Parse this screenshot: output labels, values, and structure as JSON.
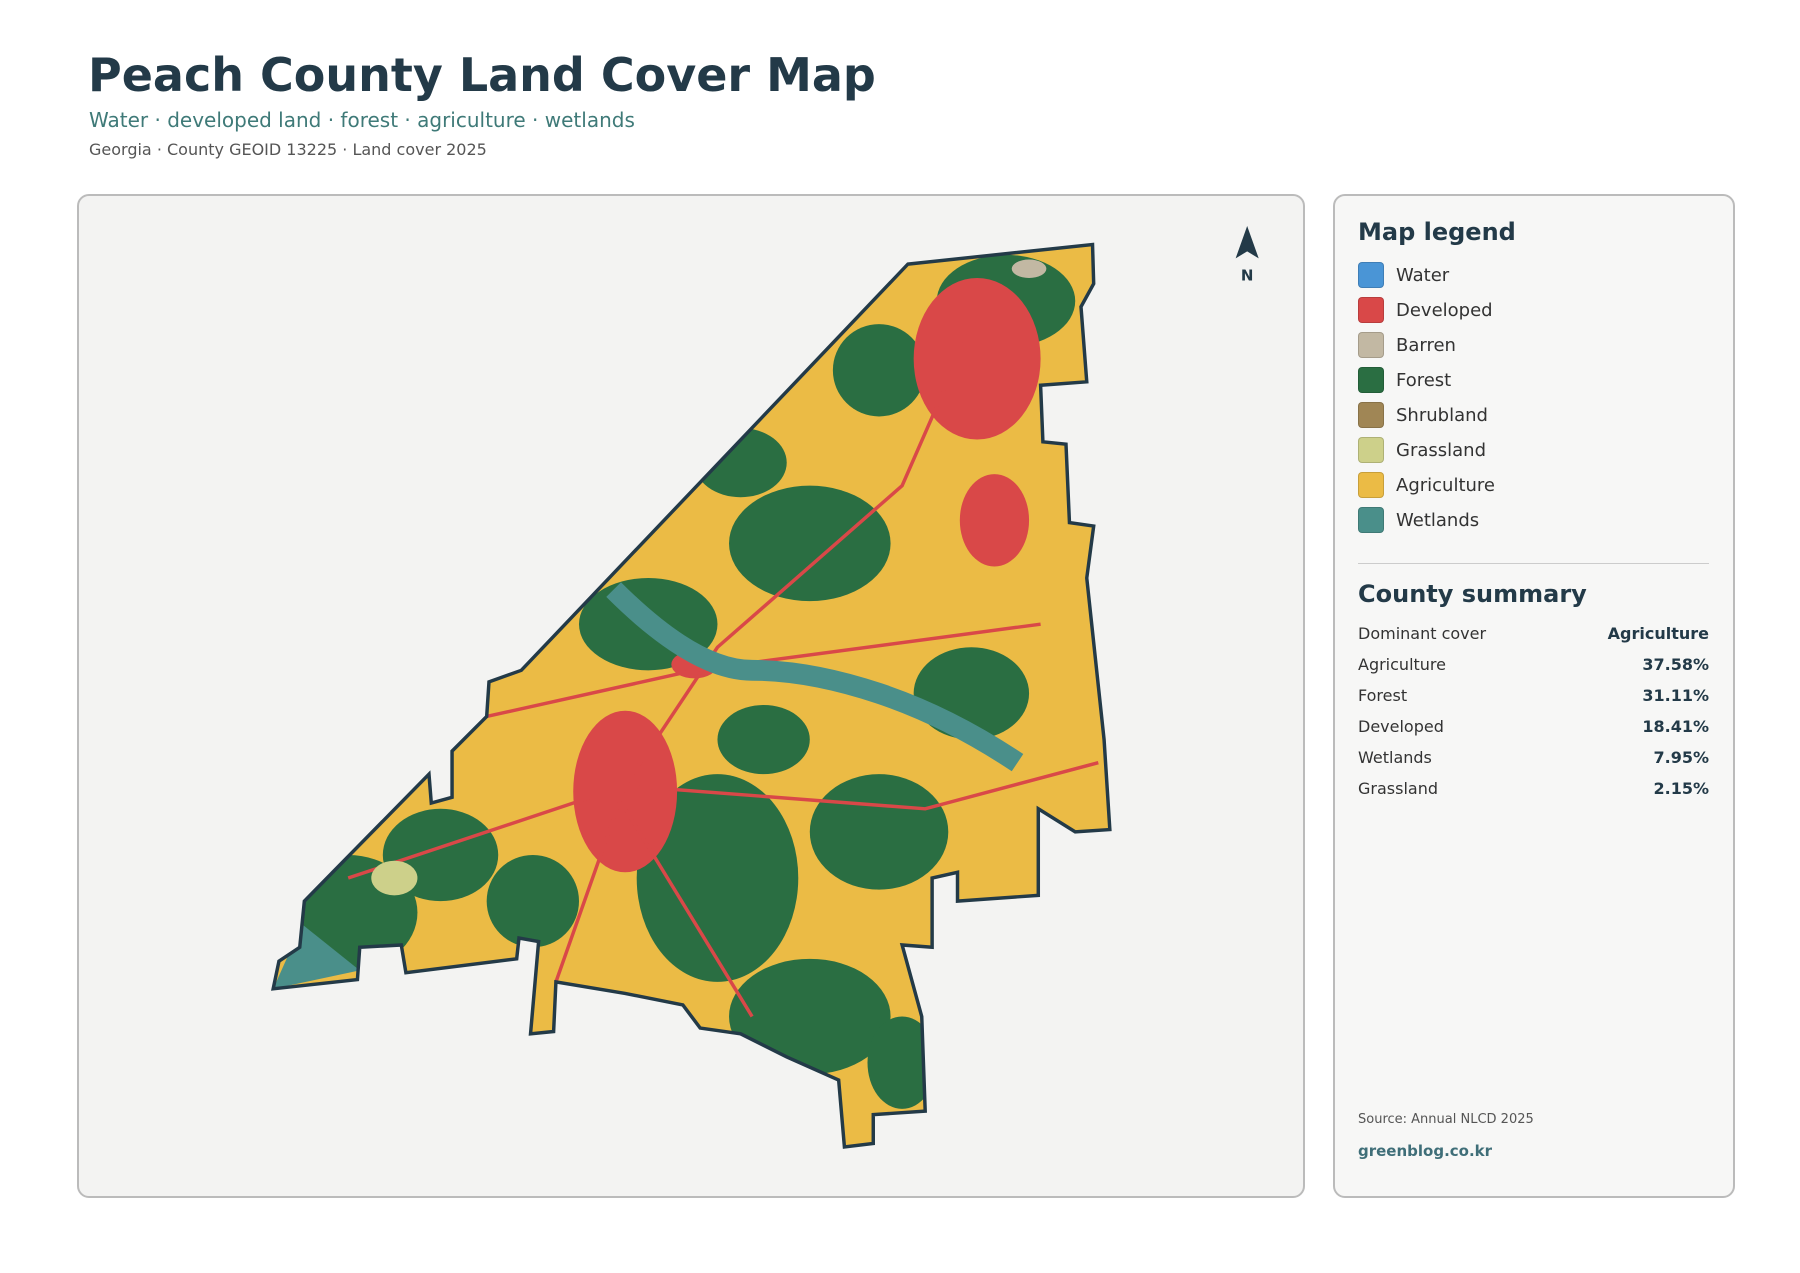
{
  "header": {
    "title": "Peach County Land Cover Map",
    "subtitle": "Water · developed land · forest · agriculture · wetlands",
    "meta": "Georgia · County GEOID 13225 · Land cover 2025"
  },
  "north": "N",
  "legend": {
    "title": "Map legend",
    "items": [
      {
        "label": "Water",
        "color": "#4a95d6"
      },
      {
        "label": "Developed",
        "color": "#d94848"
      },
      {
        "label": "Barren",
        "color": "#c2b8a3"
      },
      {
        "label": "Forest",
        "color": "#2a6e42"
      },
      {
        "label": "Shrubland",
        "color": "#a08655"
      },
      {
        "label": "Grassland",
        "color": "#cdd08a"
      },
      {
        "label": "Agriculture",
        "color": "#ebbb45"
      },
      {
        "label": "Wetlands",
        "color": "#4a8f8a"
      }
    ]
  },
  "summary": {
    "title": "County summary",
    "rows": [
      [
        "Dominant cover",
        "Agriculture"
      ],
      [
        "Agriculture",
        "37.58%"
      ],
      [
        "Forest",
        "31.11%"
      ],
      [
        "Developed",
        "18.41%"
      ],
      [
        "Wetlands",
        "7.95%"
      ],
      [
        "Grassland",
        "2.15%"
      ]
    ]
  },
  "footer": {
    "source": "Source: Annual NLCD 2025",
    "site": "greenblog.co.kr"
  }
}
